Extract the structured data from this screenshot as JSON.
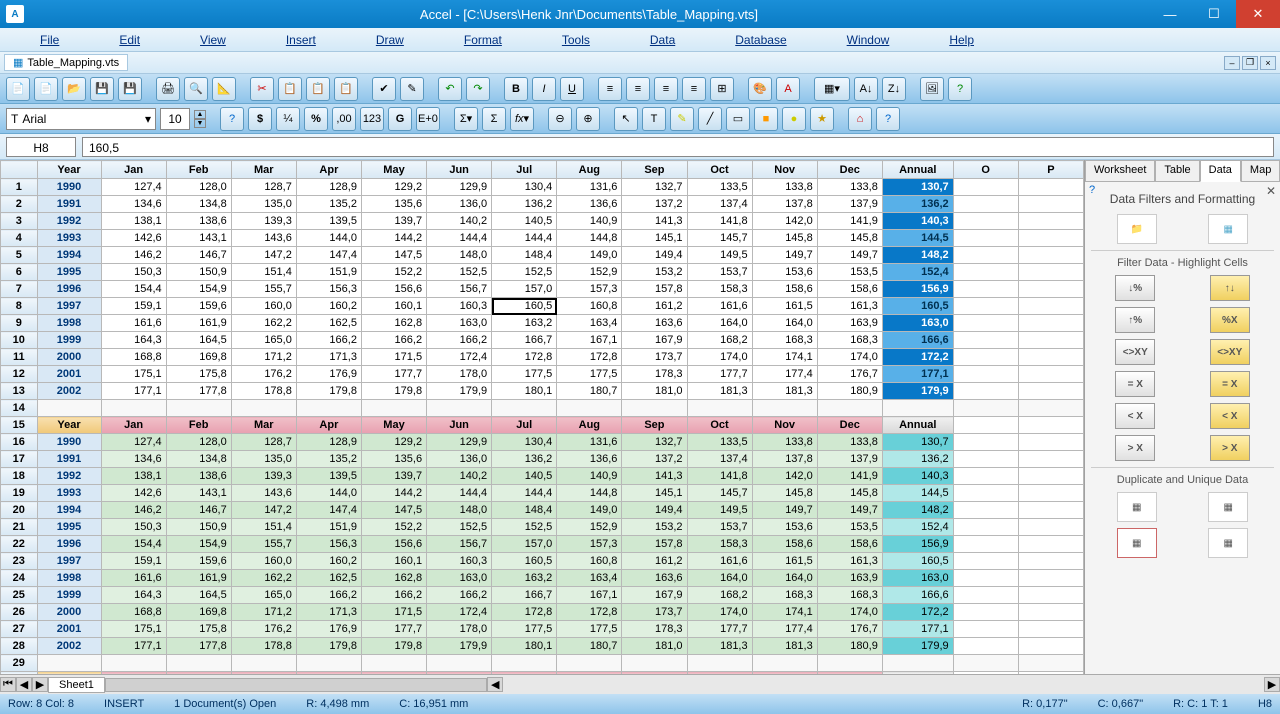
{
  "title": "Accel - [C:\\Users\\Henk Jnr\\Documents\\Table_Mapping.vts]",
  "docTab": "Table_Mapping.vts",
  "menus": [
    "File",
    "Edit",
    "View",
    "Insert",
    "Draw",
    "Format",
    "Tools",
    "Data",
    "Database",
    "Window",
    "Help"
  ],
  "fontName": "Arial",
  "fontSize": "10",
  "cellRef": "H8",
  "formula": "160,5",
  "colHeaders": [
    "Year",
    "Jan",
    "Feb",
    "Mar",
    "Apr",
    "May",
    "Jun",
    "Jul",
    "Aug",
    "Sep",
    "Oct",
    "Nov",
    "Dec",
    "Annual",
    "O",
    "P"
  ],
  "sideTabs": [
    "Worksheet",
    "Table",
    "Data",
    "Map"
  ],
  "activeSideTab": 2,
  "sidePanelTitle": "Data Filters and Formatting",
  "sideFilterHeading": "Filter Data - Highlight Cells",
  "sideDupHeading": "Duplicate and Unique Data",
  "filterLabels": [
    "↓%",
    "↑↓",
    "↑%",
    "%X",
    "<>XY",
    "<>XY",
    "= X",
    "= X",
    "< X",
    "< X",
    "> X",
    "> X"
  ],
  "sheetName": "Sheet1",
  "statusRowCol": "Row:  8  Col:  8",
  "statusInsert": "INSERT",
  "statusDocs": "1 Document(s) Open",
  "statusR": "R: 4,498 mm",
  "statusC": "C: 16,951 mm",
  "statusR2": "R: 0,177\"",
  "statusC2": "C: 0,667\"",
  "statusRC": "R: C: 1  T: 1",
  "statusCell": "H8",
  "annualStyle1": [
    "ann-blue",
    "ann-bluelight",
    "ann-blue",
    "ann-bluelight",
    "ann-blue",
    "ann-bluelight",
    "ann-blue",
    "ann-bluelight",
    "ann-blue",
    "ann-bluelight",
    "ann-blue",
    "ann-bluelight",
    "ann-blue"
  ],
  "annualStyle2": [
    "ann-teal",
    "ann-teallight",
    "ann-teal",
    "ann-teallight",
    "ann-teal",
    "ann-teallight",
    "ann-teal",
    "ann-teallight",
    "ann-teal",
    "ann-teallight",
    "ann-teal",
    "ann-teallight",
    "ann-teal"
  ],
  "years": [
    "1990",
    "1991",
    "1992",
    "1993",
    "1994",
    "1995",
    "1996",
    "1997",
    "1998",
    "1999",
    "2000",
    "2001",
    "2002"
  ],
  "data": [
    [
      "127,4",
      "128,0",
      "128,7",
      "128,9",
      "129,2",
      "129,9",
      "130,4",
      "131,6",
      "132,7",
      "133,5",
      "133,8",
      "133,8",
      "130,7"
    ],
    [
      "134,6",
      "134,8",
      "135,0",
      "135,2",
      "135,6",
      "136,0",
      "136,2",
      "136,6",
      "137,2",
      "137,4",
      "137,8",
      "137,9",
      "136,2"
    ],
    [
      "138,1",
      "138,6",
      "139,3",
      "139,5",
      "139,7",
      "140,2",
      "140,5",
      "140,9",
      "141,3",
      "141,8",
      "142,0",
      "141,9",
      "140,3"
    ],
    [
      "142,6",
      "143,1",
      "143,6",
      "144,0",
      "144,2",
      "144,4",
      "144,4",
      "144,8",
      "145,1",
      "145,7",
      "145,8",
      "145,8",
      "144,5"
    ],
    [
      "146,2",
      "146,7",
      "147,2",
      "147,4",
      "147,5",
      "148,0",
      "148,4",
      "149,0",
      "149,4",
      "149,5",
      "149,7",
      "149,7",
      "148,2"
    ],
    [
      "150,3",
      "150,9",
      "151,4",
      "151,9",
      "152,2",
      "152,5",
      "152,5",
      "152,9",
      "153,2",
      "153,7",
      "153,6",
      "153,5",
      "152,4"
    ],
    [
      "154,4",
      "154,9",
      "155,7",
      "156,3",
      "156,6",
      "156,7",
      "157,0",
      "157,3",
      "157,8",
      "158,3",
      "158,6",
      "158,6",
      "156,9"
    ],
    [
      "159,1",
      "159,6",
      "160,0",
      "160,2",
      "160,1",
      "160,3",
      "160,5",
      "160,8",
      "161,2",
      "161,6",
      "161,5",
      "161,3",
      "160,5"
    ],
    [
      "161,6",
      "161,9",
      "162,2",
      "162,5",
      "162,8",
      "163,0",
      "163,2",
      "163,4",
      "163,6",
      "164,0",
      "164,0",
      "163,9",
      "163,0"
    ],
    [
      "164,3",
      "164,5",
      "165,0",
      "166,2",
      "166,2",
      "166,2",
      "166,7",
      "167,1",
      "167,9",
      "168,2",
      "168,3",
      "168,3",
      "166,6"
    ],
    [
      "168,8",
      "169,8",
      "171,2",
      "171,3",
      "171,5",
      "172,4",
      "172,8",
      "172,8",
      "173,7",
      "174,0",
      "174,1",
      "174,0",
      "172,2"
    ],
    [
      "175,1",
      "175,8",
      "176,2",
      "176,9",
      "177,7",
      "178,0",
      "177,5",
      "177,5",
      "178,3",
      "177,7",
      "177,4",
      "176,7",
      "177,1"
    ],
    [
      "177,1",
      "177,8",
      "178,8",
      "179,8",
      "179,8",
      "179,9",
      "180,1",
      "180,7",
      "181,0",
      "181,3",
      "181,3",
      "180,9",
      "179,9"
    ]
  ],
  "selectedCell": {
    "row": 8,
    "col": 8
  }
}
